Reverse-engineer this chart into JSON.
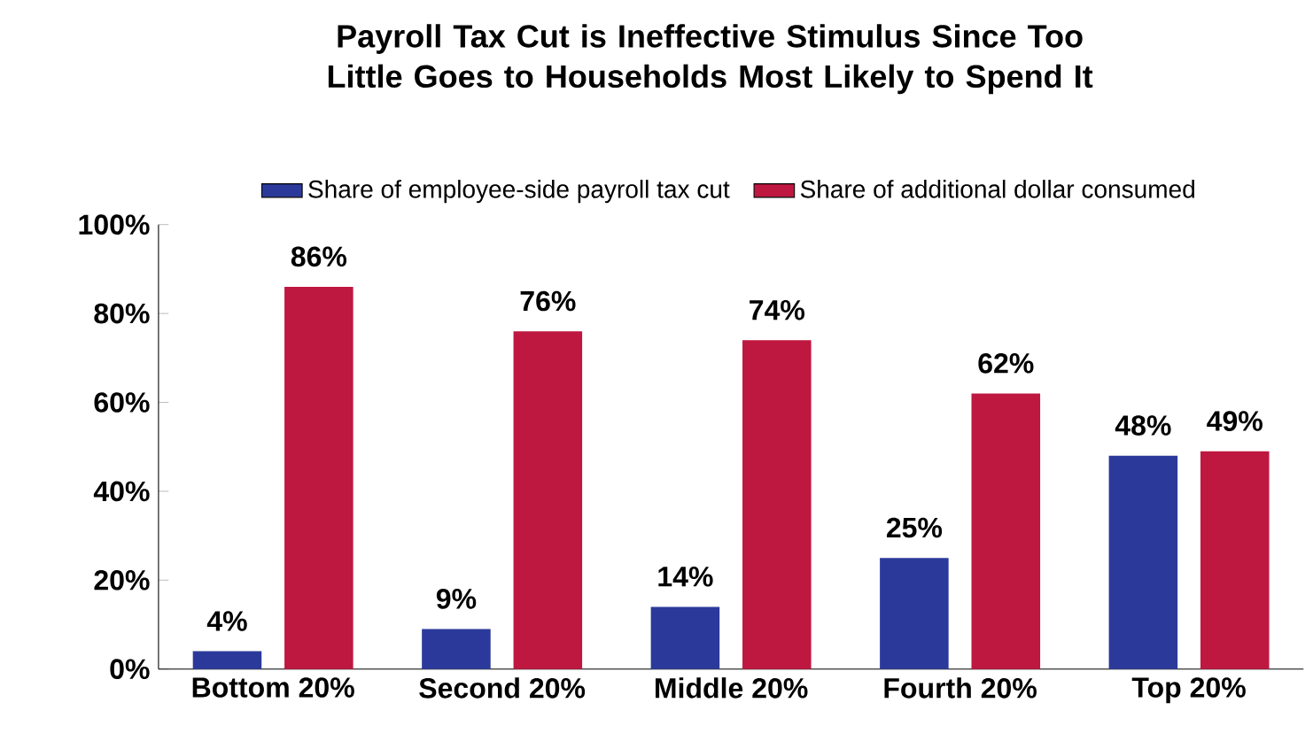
{
  "chart_data": {
    "type": "bar",
    "title": "Payroll Tax Cut is Ineffective Stimulus Since Too Little Goes to Households Most Likely to Spend It",
    "categories": [
      "Bottom 20%",
      "Second 20%",
      "Middle 20%",
      "Fourth 20%",
      "Top 20%"
    ],
    "series": [
      {
        "name": "Share of employee-side payroll tax cut",
        "color": "#2b3a9a",
        "values": [
          4,
          9,
          14,
          25,
          48
        ],
        "value_labels": [
          "4%",
          "9%",
          "14%",
          "25%",
          "48%"
        ]
      },
      {
        "name": "Share of additional dollar consumed",
        "color": "#be1740",
        "values": [
          86,
          76,
          74,
          62,
          49
        ],
        "value_labels": [
          "86%",
          "76%",
          "74%",
          "62%",
          "49%"
        ]
      }
    ],
    "ylim": [
      0,
      100
    ],
    "yticks": [
      {
        "value": 0,
        "label": "0%"
      },
      {
        "value": 20,
        "label": "20%"
      },
      {
        "value": 40,
        "label": "40%"
      },
      {
        "value": 60,
        "label": "60%"
      },
      {
        "value": 80,
        "label": "80%"
      },
      {
        "value": 100,
        "label": "100%"
      }
    ],
    "grid": false,
    "legend": "top"
  }
}
